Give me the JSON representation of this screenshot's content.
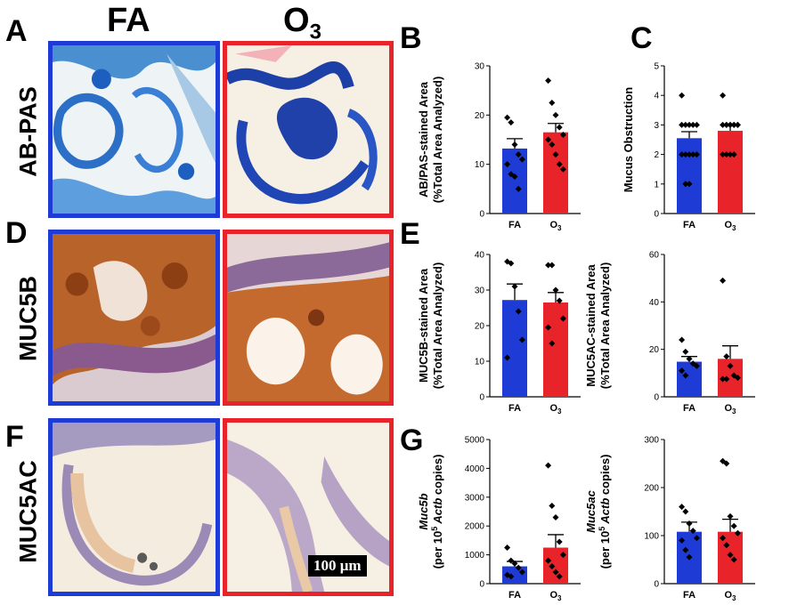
{
  "panels": {
    "A": "A",
    "B": "B",
    "C": "C",
    "D": "D",
    "E": "E",
    "F": "F",
    "G": "G"
  },
  "columns": {
    "fa": "FA",
    "o3": "O",
    "o3_sub": "3"
  },
  "rows": [
    "AB-PAS",
    "MUC5B",
    "MUC5AC"
  ],
  "scalebar": "100 μm",
  "colors": {
    "fa": "#1f3bd6",
    "o3": "#e8232a"
  },
  "chart_data": [
    {
      "id": "B",
      "type": "bar",
      "ylabel_line1": "AB/PAS-stained Area",
      "ylabel_line2": "(%Total Area Analyzed)",
      "ylim": [
        0,
        30
      ],
      "yticks": [
        0,
        10,
        20,
        30
      ],
      "categories": [
        "FA",
        "O3"
      ],
      "values": [
        13.2,
        16.5
      ],
      "sem": [
        2.0,
        1.8
      ],
      "points": [
        [
          19.5,
          18.5,
          14,
          12,
          11,
          10,
          8,
          7.5,
          5
        ],
        [
          27,
          22.5,
          20,
          17.5,
          16,
          15,
          14,
          12,
          10,
          9
        ]
      ]
    },
    {
      "id": "C",
      "type": "bar",
      "ylabel_line1": "Mucus Obstruction",
      "ylabel_line2": "",
      "ylim": [
        0,
        5
      ],
      "yticks": [
        0,
        1,
        2,
        3,
        4,
        5
      ],
      "categories": [
        "FA",
        "O3"
      ],
      "values": [
        2.55,
        2.8
      ],
      "sem": [
        0.22,
        0.18
      ],
      "points": [
        [
          4,
          3,
          3,
          3,
          3,
          3,
          2,
          2,
          2,
          2,
          2,
          1,
          1
        ],
        [
          4,
          3,
          3,
          3,
          3,
          3,
          3,
          3,
          3,
          3,
          2,
          2,
          2,
          2
        ]
      ]
    },
    {
      "id": "E1",
      "type": "bar",
      "ylabel_line1": "MUC5B-stained Area",
      "ylabel_line2": "(%Total Area Analyzed)",
      "ylim": [
        0,
        40
      ],
      "yticks": [
        0,
        10,
        20,
        30,
        40
      ],
      "categories": [
        "FA",
        "O3"
      ],
      "values": [
        27.2,
        26.5
      ],
      "sem": [
        4.5,
        2.8
      ],
      "points": [
        [
          38,
          37.5,
          31,
          24,
          16,
          11
        ],
        [
          37,
          37,
          30,
          27,
          22,
          19.5,
          15
        ]
      ]
    },
    {
      "id": "E2",
      "type": "bar",
      "ylabel_line1": "MUC5AC-stained Area",
      "ylabel_line2": "(%Total Area Analyzed)",
      "ylim": [
        0,
        60
      ],
      "yticks": [
        0,
        20,
        40,
        60
      ],
      "categories": [
        "FA",
        "O3"
      ],
      "values": [
        14.8,
        16.0
      ],
      "sem": [
        2.2,
        5.5
      ],
      "points": [
        [
          24,
          19,
          16,
          14,
          13,
          11,
          9
        ],
        [
          49,
          17,
          13,
          9,
          8,
          7.5,
          7.5
        ]
      ]
    },
    {
      "id": "G1",
      "type": "bar",
      "ylabel_italic": "Muc5b",
      "ylabel_line2": "(per 10",
      "ylabel_sup": "5",
      "ylabel_rest": " Actb copies)",
      "ylim": [
        0,
        5000
      ],
      "yticks": [
        0,
        1000,
        2000,
        3000,
        4000,
        5000
      ],
      "categories": [
        "FA",
        "O3"
      ],
      "values": [
        600,
        1250
      ],
      "sem": [
        170,
        450
      ],
      "points": [
        [
          1250,
          800,
          700,
          550,
          400,
          300,
          250
        ],
        [
          4100,
          2700,
          2300,
          1450,
          1000,
          800,
          600,
          400,
          250
        ]
      ]
    },
    {
      "id": "G2",
      "type": "bar",
      "ylabel_italic": "Muc5ac",
      "ylabel_line2": "(per 10",
      "ylabel_sup": "5",
      "ylabel_rest": " Actb copies)",
      "ylim": [
        0,
        300
      ],
      "yticks": [
        0,
        100,
        200,
        300
      ],
      "categories": [
        "FA",
        "O3"
      ],
      "values": [
        108,
        108
      ],
      "sem": [
        20,
        26
      ],
      "points": [
        [
          160,
          150,
          125,
          110,
          95,
          90,
          70,
          55
        ],
        [
          255,
          250,
          140,
          120,
          105,
          95,
          80,
          60,
          50
        ]
      ]
    }
  ]
}
